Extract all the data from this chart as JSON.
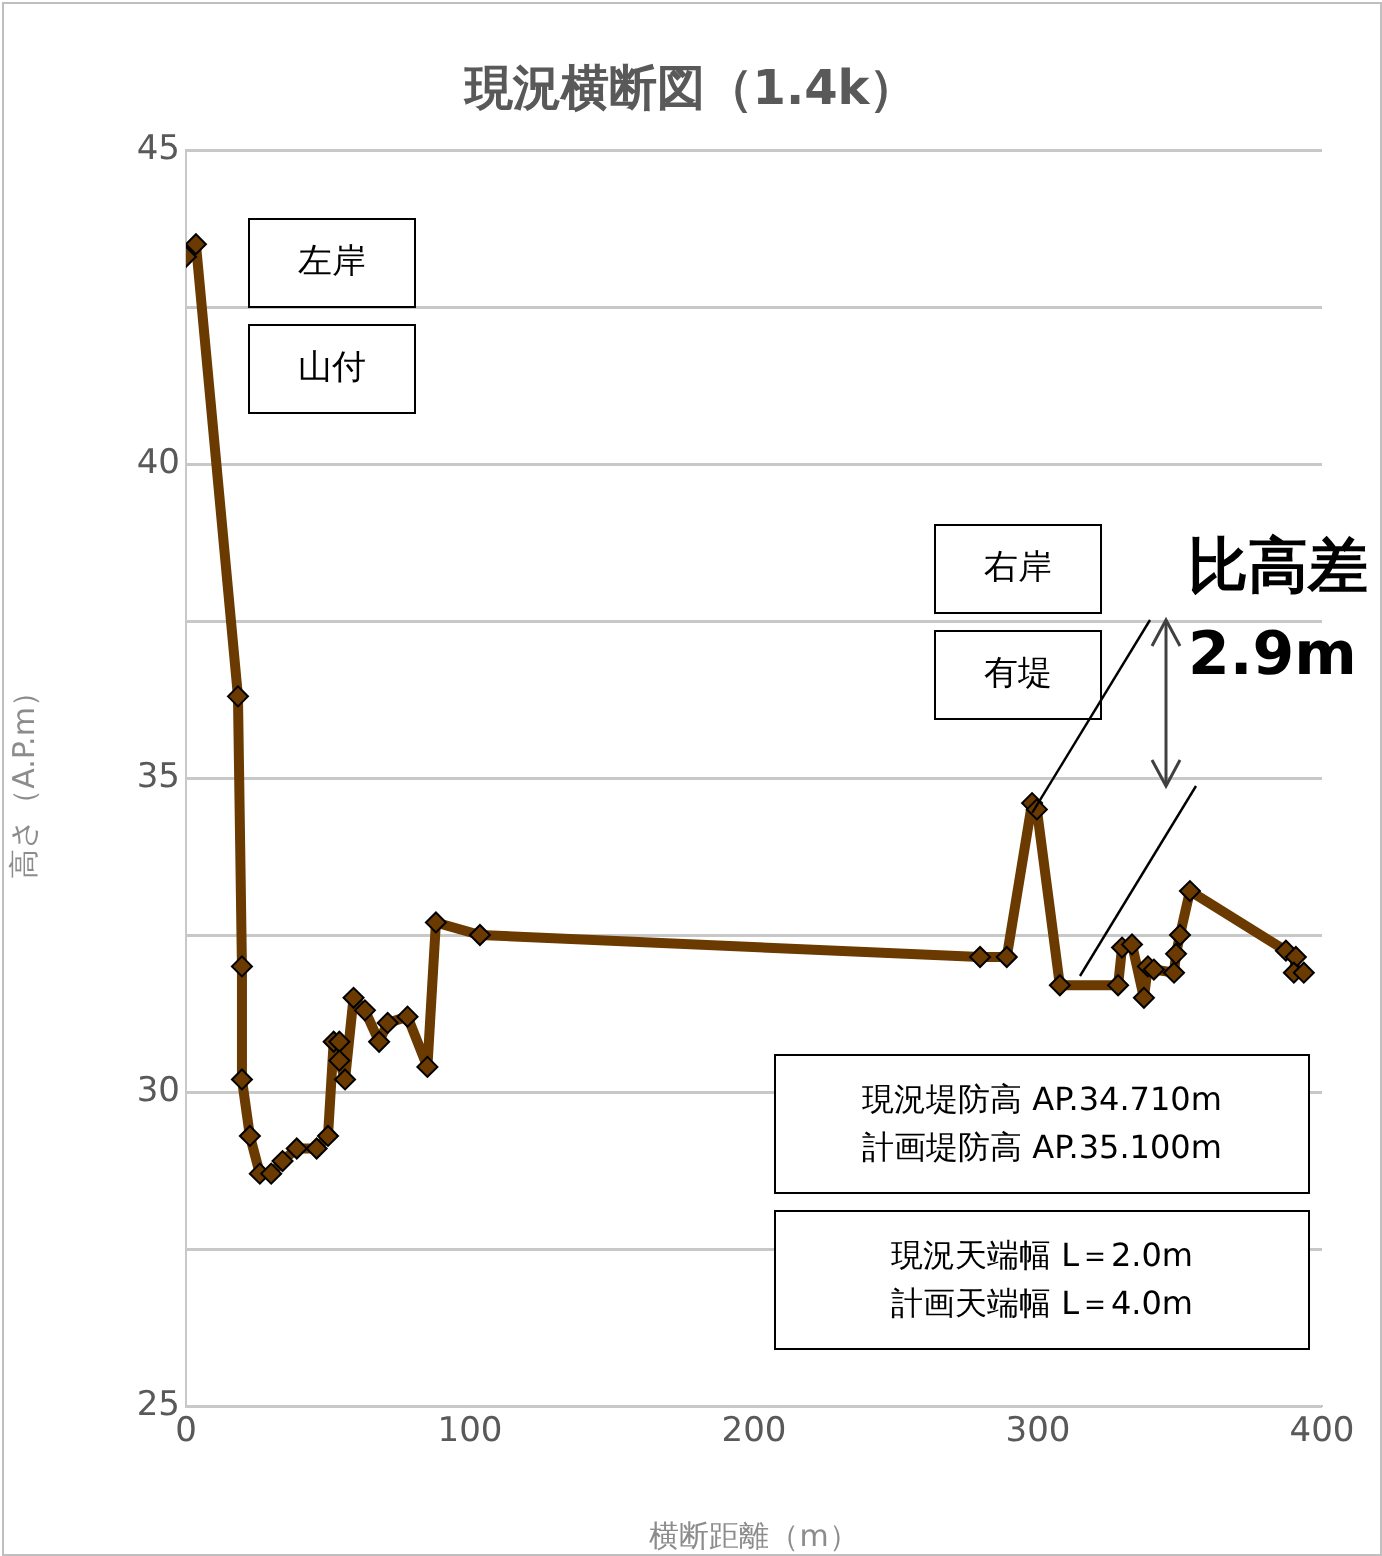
{
  "chart_data": {
    "type": "line",
    "title": "現況横断図（1.4k）",
    "xlabel": "横断距離（m）",
    "ylabel": "高さ（A.P.m）",
    "xlim": [
      0,
      400
    ],
    "xticks": [
      0,
      100,
      200,
      300,
      400
    ],
    "ylim": [
      25,
      45
    ],
    "yticks": [
      25,
      {
        "value": 27.5,
        "label": null
      },
      30,
      {
        "value": 32.5,
        "label": null
      },
      35,
      {
        "value": 37.5,
        "label": null
      },
      40,
      {
        "value": 42.5,
        "label": null
      },
      45
    ],
    "grid": "y",
    "marker": "diamond",
    "line_style": "solid",
    "legend": false,
    "series": [
      {
        "color": "#6b3a00",
        "x": [
          0,
          3.5,
          18.3,
          19.7,
          19.7,
          22.5,
          26,
          30,
          34,
          39,
          46,
          50,
          52,
          54,
          54,
          56,
          59,
          63,
          68,
          71,
          78,
          85,
          88,
          103.5,
          279.6,
          289,
          297.9,
          299.6,
          307.7,
          328.2,
          329.6,
          333.1,
          337.3,
          338.7,
          340.8,
          347.9,
          348.6,
          350,
          353.5,
          387.3,
          390.8,
          390.1,
          393.6
        ],
        "values": [
          43.3,
          43.5,
          36.3,
          32,
          30.2,
          29.3,
          28.7,
          28.7,
          28.9,
          29.1,
          29.1,
          29.3,
          30.8,
          30.8,
          30.5,
          30.2,
          31.5,
          31.3,
          30.8,
          31.1,
          31.2,
          30.4,
          32.7,
          32.5,
          32.15,
          32.15,
          34.6,
          34.5,
          31.7,
          31.7,
          32.3,
          32.35,
          31.5,
          32,
          31.95,
          31.9,
          32.2,
          32.5,
          33.2,
          32.25,
          32.15,
          31.9,
          31.9
        ]
      }
    ],
    "annotations": [
      "左岸",
      "山付",
      "右岸",
      "有堤",
      {
        "text": "比高差 2.9m",
        "x": 298,
        "y": 34.6
      },
      "現況堤防高 AP.34.710m",
      "計画堤防高 AP.35.100m",
      "現況天端幅 L＝2.0m",
      "計画天端幅 L＝4.0m"
    ]
  }
}
